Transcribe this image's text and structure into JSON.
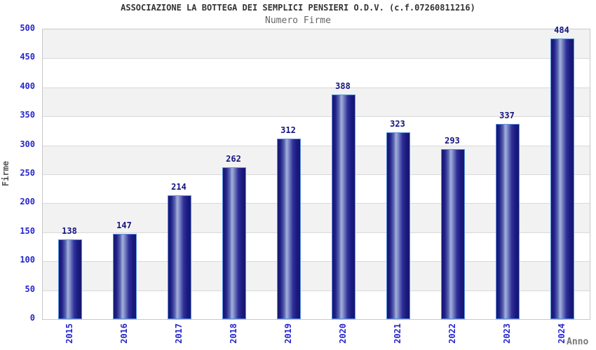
{
  "chart_data": {
    "type": "bar",
    "title": "ASSOCIAZIONE LA BOTTEGA DEI SEMPLICI PENSIERI O.D.V. (c.f.07260811216)",
    "subtitle": "Numero Firme",
    "xlabel": "Anno",
    "ylabel": "Firme",
    "categories": [
      "2015",
      "2016",
      "2017",
      "2018",
      "2019",
      "2020",
      "2021",
      "2022",
      "2023",
      "2024"
    ],
    "values": [
      138,
      147,
      214,
      262,
      312,
      388,
      323,
      293,
      337,
      484
    ],
    "ylim": [
      0,
      500
    ],
    "ytick_step": 50,
    "yticks": [
      "0",
      "50",
      "100",
      "150",
      "200",
      "250",
      "300",
      "350",
      "400",
      "450",
      "500"
    ],
    "grid": "horizontal",
    "legend": "none",
    "colors": {
      "band_alt": "#f2f2f2",
      "band_main": "#ffffff",
      "gridline": "#d9d9d9",
      "plot_border": "#c8c8c8",
      "bar_border": "#5b92e0",
      "bar_dark": "#15156e",
      "bar_light": "#a6b0dc",
      "tick_label": "#2525cf",
      "value_label": "#14147e",
      "title": "#333333",
      "subtitle": "#666666"
    }
  }
}
